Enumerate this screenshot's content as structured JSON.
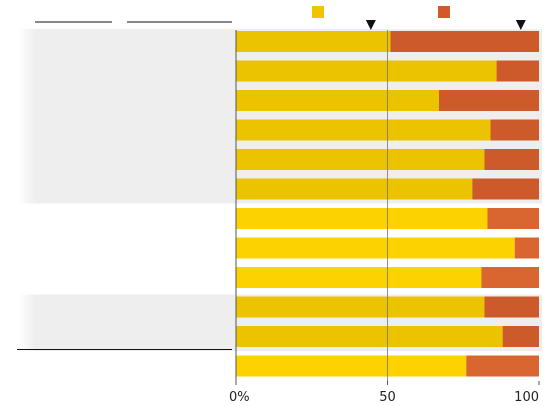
{
  "chart_data": {
    "type": "bar",
    "stacked": true,
    "orientation": "horizontal",
    "xlim": [
      0,
      100
    ],
    "x_ticks": [
      {
        "value": 0,
        "label": "0%"
      },
      {
        "value": 50,
        "label": "50"
      },
      {
        "value": 100,
        "label": "100"
      }
    ],
    "legend_placement": "top",
    "legend_markers": [
      44.5,
      94
    ],
    "series": [
      {
        "color": "#f0c400",
        "values": [
          51,
          86,
          67,
          84,
          82,
          78,
          83,
          92,
          81,
          82,
          88,
          76
        ]
      },
      {
        "color": "#d25a28",
        "values": [
          49,
          14,
          33,
          16,
          18,
          22,
          17,
          8,
          19,
          18,
          12,
          24
        ]
      }
    ],
    "row_groups": [
      {
        "rows": [
          0,
          1,
          2,
          3,
          4,
          5
        ],
        "shaded": true
      },
      {
        "rows": [
          6,
          7,
          8
        ],
        "shaded": false
      },
      {
        "rows": [
          9,
          10
        ],
        "shaded": true
      },
      {
        "rows": [
          11
        ],
        "shaded": false
      }
    ],
    "gridlines": [
      50
    ]
  },
  "colors": {
    "primary_dark": "#ebc300",
    "primary_bright": "#fcd200",
    "secondary_dark": "#cc5a2a",
    "secondary_bright": "#d96530",
    "shade": "#eeeeee",
    "marker": "#111111"
  }
}
